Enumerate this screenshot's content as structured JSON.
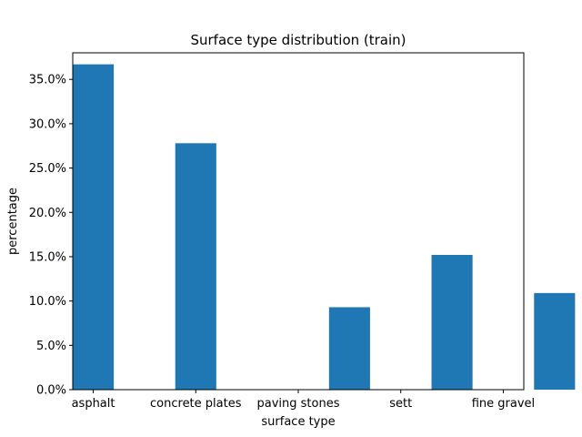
{
  "chart_data": {
    "type": "bar",
    "title": "Surface type distribution (train)",
    "xlabel": "surface type",
    "ylabel": "percentage",
    "ylim": [
      0,
      0.38
    ],
    "y_ticks": [
      0.0,
      0.05,
      0.1,
      0.15,
      0.2,
      0.25,
      0.3,
      0.35
    ],
    "y_tick_labels": [
      "0.0%",
      "5.0%",
      "10.0%",
      "15.0%",
      "20.0%",
      "25.0%",
      "30.0%",
      "35.0%"
    ],
    "x_tick_labels": [
      "asphalt",
      "concrete plates",
      "paving stones",
      "sett",
      "fine gravel"
    ],
    "x_tick_positions": [
      0.0,
      1.0,
      2.0,
      3.0,
      4.0
    ],
    "xlim": [
      -0.2,
      4.2
    ],
    "bars": [
      {
        "x": 0.0,
        "value": 0.367
      },
      {
        "x": 1.0,
        "value": 0.278
      },
      {
        "x": 2.5,
        "value": 0.093
      },
      {
        "x": 3.5,
        "value": 0.152
      },
      {
        "x": 4.5,
        "value": 0.109
      }
    ],
    "bar_color": "#1f77b4",
    "grid": false,
    "legend": "none"
  }
}
